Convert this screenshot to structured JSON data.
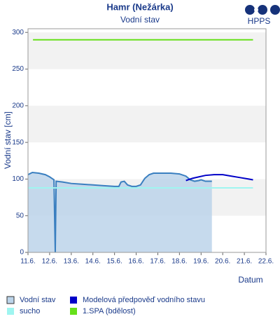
{
  "chart_data": {
    "type": "line",
    "title": "Hamr (Nežárka)",
    "subtitle": "Vodní stav",
    "y_label": "Vodní stav [cm]",
    "x_label": "Datum",
    "logo": "HPPS",
    "xlim": [
      11,
      22
    ],
    "xticks": [
      {
        "value": 11,
        "label": "11.6."
      },
      {
        "value": 12,
        "label": "12.6."
      },
      {
        "value": 13,
        "label": "13.6."
      },
      {
        "value": 14,
        "label": "14.6."
      },
      {
        "value": 15,
        "label": "15.6."
      },
      {
        "value": 16,
        "label": "16.6."
      },
      {
        "value": 17,
        "label": "17.6."
      },
      {
        "value": 18,
        "label": "18.6."
      },
      {
        "value": 19,
        "label": "19.6."
      },
      {
        "value": 20,
        "label": "20.6."
      },
      {
        "value": 21,
        "label": "21.6."
      },
      {
        "value": 22,
        "label": "22.6."
      }
    ],
    "ylim": [
      0,
      305
    ],
    "yticks": [
      0,
      50,
      100,
      150,
      200,
      250,
      300
    ],
    "grid_bands": true,
    "series": [
      {
        "name": "Vodní stav",
        "color": "#3a7fc0",
        "area": true,
        "area_color": "#bcd4ea",
        "x": [
          11.0,
          11.2,
          11.5,
          11.8,
          12.0,
          12.2,
          12.26,
          12.3,
          12.6,
          13.0,
          13.5,
          14.0,
          14.5,
          15.0,
          15.2,
          15.3,
          15.45,
          15.6,
          15.8,
          16.0,
          16.2,
          16.4,
          16.6,
          16.8,
          17.2,
          17.6,
          18.0,
          18.3,
          18.5,
          18.7,
          18.9,
          19.0,
          19.2,
          19.5
        ],
        "values": [
          106,
          109,
          108,
          106,
          103,
          99,
          0,
          97,
          96,
          94,
          93,
          92,
          91,
          90,
          90,
          96,
          97,
          92,
          90,
          90,
          92,
          101,
          106,
          108,
          108,
          108,
          107,
          104,
          99,
          97,
          98,
          99,
          97,
          97
        ]
      },
      {
        "name": "Modelová předpověď vodního stavu",
        "color": "#0000c8",
        "x": [
          18.3,
          18.6,
          18.9,
          19.2,
          19.6,
          20.0,
          20.4,
          20.8,
          21.2,
          21.4
        ],
        "values": [
          98,
          101,
          103,
          105,
          106,
          106,
          104,
          102,
          100,
          99
        ]
      },
      {
        "name": "sucho",
        "color": "#9ff5f0",
        "x": [
          11.0,
          21.4
        ],
        "values": [
          88,
          88
        ]
      },
      {
        "name": "1.SPA (bdělost)",
        "color": "#66e01a",
        "x": [
          11.23,
          21.4
        ],
        "values": [
          290,
          290
        ]
      }
    ]
  }
}
